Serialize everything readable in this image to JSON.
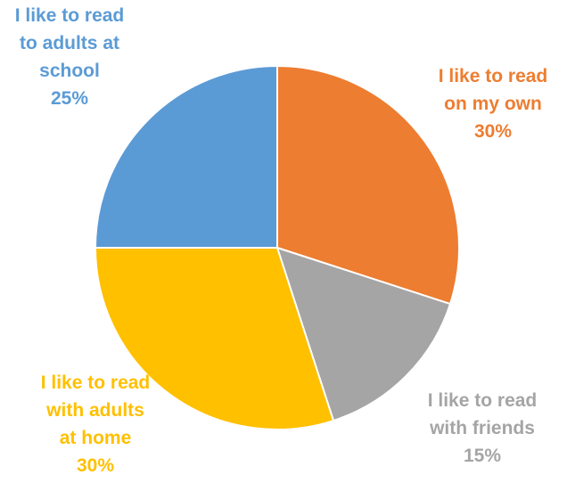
{
  "chart_data": {
    "type": "pie",
    "title": "",
    "start_angle_deg": 0,
    "direction": "clockwise",
    "slices": [
      {
        "label_lines": [
          "I like to read",
          "on my own"
        ],
        "percent_label": "30%",
        "value": 30,
        "color": "#ED7D31"
      },
      {
        "label_lines": [
          "I like to read",
          "with friends"
        ],
        "percent_label": "15%",
        "value": 15,
        "color": "#A5A5A5"
      },
      {
        "label_lines": [
          "I like to read",
          "with adults",
          "at home"
        ],
        "percent_label": "30%",
        "value": 30,
        "color": "#FFC000"
      },
      {
        "label_lines": [
          "I like to read",
          "to adults at",
          "school"
        ],
        "percent_label": "25%",
        "value": 25,
        "color": "#5B9BD5"
      }
    ],
    "legend": "none",
    "slice_border_color": "#FFFFFF"
  }
}
